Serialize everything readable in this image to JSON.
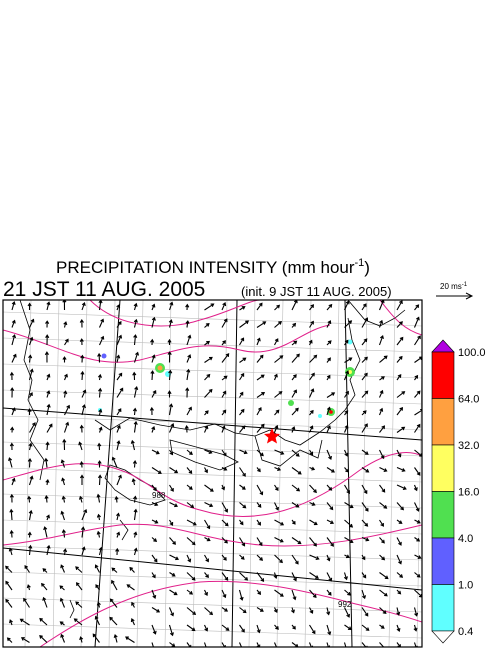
{
  "header": {
    "title": "PRECIPITATION INTENSITY (mm hour",
    "title_exponent": "-1",
    "title_close": ")",
    "valid_time": "21 JST 11 AUG. 2005",
    "init_time": "(init. 9 JST 11 AUG. 2005)"
  },
  "vector_scale": {
    "label": "20 ms",
    "exponent": "-1"
  },
  "colorbar": {
    "labels": [
      "100.0",
      "64.0",
      "32.0",
      "16.0",
      "4.0",
      "1.0",
      "0.4"
    ],
    "over_color": "#b000e0",
    "colors": [
      "#ff0000",
      "#ffa040",
      "#ffff60",
      "#50e050",
      "#6060ff",
      "#60ffff"
    ],
    "under_color": "#ffffff"
  },
  "contour_labels": [
    "988",
    "992"
  ]
}
